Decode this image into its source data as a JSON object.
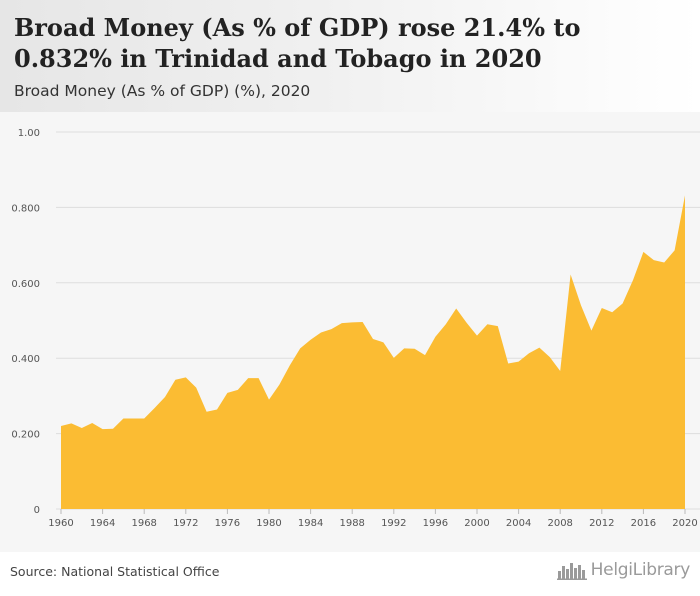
{
  "header": {
    "title": "Broad Money (As % of GDP) rose 21.4% to 0.832% in Trinidad and Tobago in 2020",
    "subtitle": "Broad Money (As % of GDP) (%), 2020"
  },
  "footer": {
    "source": "Source: National Statistical Office",
    "brand": "HelgiLibrary",
    "brand_icon": "city-skyline-icon"
  },
  "colors": {
    "fill": "#fbbc33",
    "grid": "#dddddd",
    "plot_bg": "#f6f6f6",
    "axis_text": "#555555"
  },
  "chart_data": {
    "type": "area",
    "title": "",
    "xlabel": "",
    "ylabel": "",
    "ylim": [
      0,
      1.0
    ],
    "xlim": [
      1960,
      2020
    ],
    "grid": true,
    "legend": "none",
    "y_ticks": [
      "0",
      "0.200",
      "0.400",
      "0.600",
      "0.800",
      "1.00"
    ],
    "x_ticks": [
      "1960",
      "1964",
      "1968",
      "1972",
      "1976",
      "1980",
      "1984",
      "1988",
      "1992",
      "1996",
      "2000",
      "2004",
      "2008",
      "2012",
      "2016",
      "2020"
    ],
    "series": [
      {
        "x": [
          1960,
          1961,
          1962,
          1963,
          1964,
          1965,
          1966,
          1967,
          1968,
          1969,
          1970,
          1971,
          1972,
          1973,
          1974,
          1975,
          1976,
          1977,
          1978,
          1979,
          1980,
          1981,
          1982,
          1983,
          1984,
          1985,
          1986,
          1987,
          1988,
          1989,
          1990,
          1991,
          1992,
          1993,
          1994,
          1995,
          1996,
          1997,
          1998,
          1999,
          2000,
          2001,
          2002,
          2003,
          2004,
          2005,
          2006,
          2007,
          2008,
          2009,
          2010,
          2011,
          2012,
          2013,
          2014,
          2015,
          2016,
          2017,
          2018,
          2019,
          2020
        ],
        "values": [
          0.22,
          0.227,
          0.215,
          0.228,
          0.212,
          0.213,
          0.24,
          0.24,
          0.24,
          0.268,
          0.297,
          0.343,
          0.349,
          0.322,
          0.258,
          0.264,
          0.308,
          0.316,
          0.347,
          0.347,
          0.29,
          0.33,
          0.381,
          0.426,
          0.449,
          0.468,
          0.477,
          0.493,
          0.495,
          0.496,
          0.451,
          0.442,
          0.401,
          0.426,
          0.425,
          0.408,
          0.457,
          0.49,
          0.532,
          0.494,
          0.46,
          0.49,
          0.485,
          0.386,
          0.391,
          0.413,
          0.428,
          0.403,
          0.366,
          0.622,
          0.54,
          0.473,
          0.533,
          0.522,
          0.545,
          0.607,
          0.682,
          0.66,
          0.654,
          0.686,
          0.832
        ]
      }
    ]
  }
}
